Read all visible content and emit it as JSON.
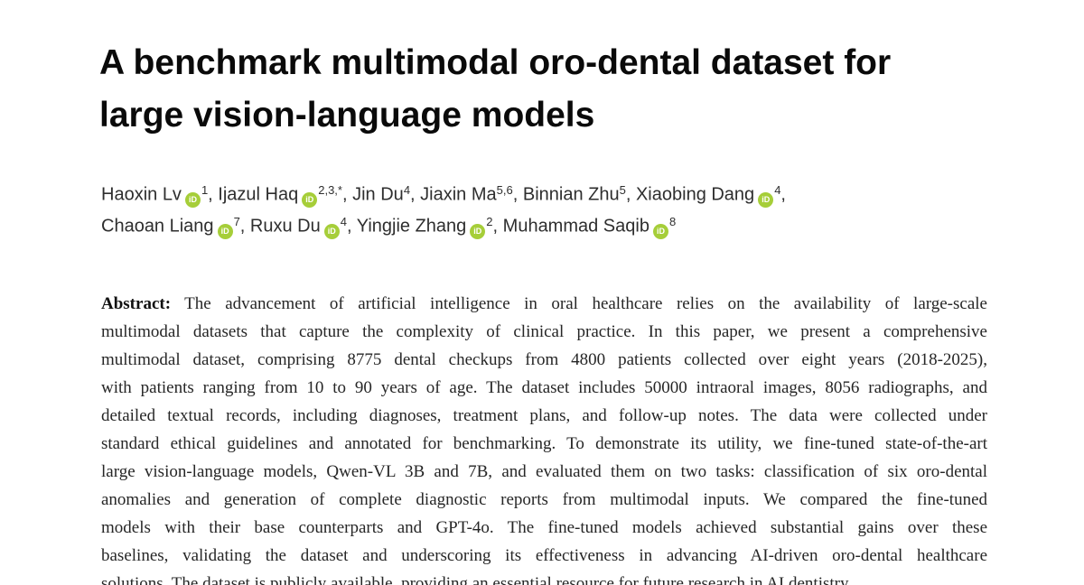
{
  "title": {
    "line1": "A benchmark multimodal oro-dental dataset for",
    "line2": "large vision-language models"
  },
  "authors": {
    "orcid_icon": {
      "label": "iD",
      "color": "#A6CE39"
    },
    "lines": [
      [
        {
          "name": "Haoxin Lv",
          "orcid": true,
          "sup": "1",
          "sep": ", "
        },
        {
          "name": "Ijazul Haq",
          "orcid": true,
          "sup": "2,3,*",
          "sep": ", "
        },
        {
          "name": "Jin Du",
          "orcid": false,
          "sup": "4",
          "sep": ", "
        },
        {
          "name": "Jiaxin Ma",
          "orcid": false,
          "sup": "5,6",
          "sep": ", "
        },
        {
          "name": "Binnian Zhu",
          "orcid": false,
          "sup": "5",
          "sep": ", "
        },
        {
          "name": "Xiaobing Dang",
          "orcid": true,
          "sup": "4",
          "sep": ","
        }
      ],
      [
        {
          "name": "Chaoan Liang",
          "orcid": true,
          "sup": "7",
          "sep": ", "
        },
        {
          "name": "Ruxu Du",
          "orcid": true,
          "sup": "4",
          "sep": ", "
        },
        {
          "name": "Yingjie Zhang",
          "orcid": true,
          "sup": "2",
          "sep": ", "
        },
        {
          "name": "Muhammad Saqib",
          "orcid": true,
          "sup": "8",
          "sep": ""
        }
      ]
    ]
  },
  "abstract": {
    "label": "Abstract:",
    "lines": [
      "The advancement of artificial intelligence in oral healthcare relies on the availability of large-scale",
      "multimodal datasets that capture the complexity of clinical practice. In this paper, we present a comprehensive",
      "multimodal dataset, comprising 8775 dental checkups from 4800 patients collected over eight years (2018-2025),",
      "with patients ranging from 10 to 90 years of age. The dataset includes 50000 intraoral images, 8056 radiographs, and",
      "detailed textual records, including diagnoses, treatment plans, and follow-up notes. The data were collected under",
      "standard ethical guidelines and annotated for benchmarking. To demonstrate its utility, we fine-tuned state-of-the-art",
      "large vision-language models, Qwen-VL 3B and 7B, and evaluated them on two tasks: classification of six oro-dental",
      "anomalies and generation of complete diagnostic reports from multimodal inputs. We compared the fine-tuned",
      "models with their base counterparts and GPT-4o. The fine-tuned models achieved substantial gains over these",
      "baselines, validating the dataset and underscoring its effectiveness in advancing AI-driven oro-dental healthcare",
      "solutions. The dataset is publicly available, providing an essential resource for future research in AI dentistry."
    ]
  },
  "colors": {
    "title": "#0a0a0a",
    "authors": "#2e2e2e",
    "abstract_body": "#262626",
    "orcid_green": "#A6CE39"
  }
}
